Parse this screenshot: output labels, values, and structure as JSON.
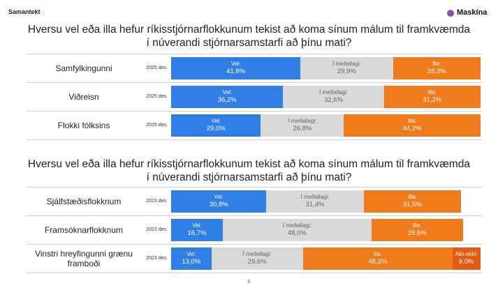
{
  "header": {
    "title": "Samantekt",
    "logo": "Maskína"
  },
  "page_number": "5",
  "chart_data": [
    {
      "type": "bar",
      "orientation": "horizontal",
      "stacked": true,
      "title": [
        "Hversu vel eða illa hefur ríkisstjórnarflokkunum tekist að koma sínum málum til framkvæmda",
        "í núverandi stjórnarsamstarfi að þínu mati?"
      ],
      "categories": [
        "Samfylkingunni",
        "Viðreisn",
        "Flokki fólksins"
      ],
      "periods": [
        "2025 des.",
        "2025 des.",
        "2025 des."
      ],
      "xlim": [
        0,
        100
      ],
      "series": [
        {
          "name": "Vel:",
          "color": "#2f7fe6",
          "values": [
            41.8,
            36.2,
            29.0
          ],
          "value_labels": [
            "41,8%",
            "36,2%",
            "29,0%"
          ]
        },
        {
          "name": "Í meðallagi:",
          "color": "#d9d9d9",
          "values": [
            29.9,
            32.6,
            26.8
          ],
          "value_labels": [
            "29,9%",
            "32,6%",
            "26,8%"
          ]
        },
        {
          "name": "Illa:",
          "color": "#f07b1b",
          "values": [
            28.3,
            31.2,
            44.2
          ],
          "value_labels": [
            "28,3%",
            "31,2%",
            "44,2%"
          ]
        }
      ]
    },
    {
      "type": "bar",
      "orientation": "horizontal",
      "stacked": true,
      "title": [
        "Hversu vel eða illa hefur ríkisstjórnarflokkunum tekist að koma sínum málum til framkvæmda",
        "í núverandi stjórnarsamstarfi að þínu mati?"
      ],
      "categories": [
        "Sjálfstæðisflokknum",
        "Framsóknarflokknum",
        "Vinstri hreyfingunni grænu framboði"
      ],
      "periods": [
        "2023 des.",
        "2023 des.",
        "2023 des."
      ],
      "xlim": [
        0,
        100
      ],
      "series": [
        {
          "name": "Vel:",
          "color": "#2f7fe6",
          "values": [
            30.8,
            16.7,
            13.0
          ],
          "value_labels": [
            "30,8%",
            "16,7%",
            "13,0%"
          ]
        },
        {
          "name": "Í meðallagi:",
          "color": "#d9d9d9",
          "values": [
            31.4,
            48.0,
            29.6
          ],
          "value_labels": [
            "31,4%",
            "48,0%",
            "29,6%"
          ]
        },
        {
          "name": "Illa:",
          "color": "#f07b1b",
          "values": [
            31.5,
            29.6,
            48.3
          ],
          "value_labels": [
            "31,5%",
            "29,6%",
            "48,3%"
          ]
        },
        {
          "name": "Alls ekki:",
          "color": "#e55a12",
          "values": [
            null,
            null,
            9.0
          ],
          "value_labels": [
            null,
            null,
            "9,0%"
          ]
        }
      ]
    }
  ]
}
